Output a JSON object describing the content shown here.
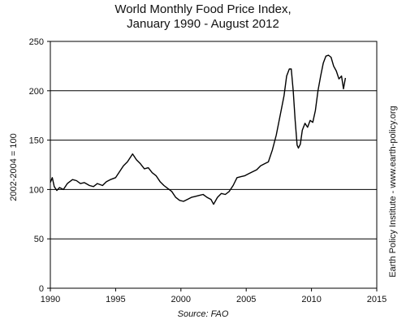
{
  "title_line1": "World Monthly Food Price Index,",
  "title_line2": "January 1990 - August 2012",
  "source": "Source: FAO",
  "side_note": "Earth Policy Institute - www.earth-policy.org",
  "chart_data": {
    "type": "line",
    "title": "World Monthly Food Price Index, January 1990 - August 2012",
    "xlabel": "",
    "ylabel": "2002-2004 = 100",
    "xlim": [
      1990,
      2015
    ],
    "ylim": [
      0,
      250
    ],
    "x_ticks": [
      1990,
      1995,
      2000,
      2005,
      2010,
      2015
    ],
    "y_ticks": [
      0,
      50,
      100,
      150,
      200,
      250
    ],
    "gridlines_y": [
      50,
      100,
      150,
      200
    ],
    "line_color": "#000000",
    "series": [
      {
        "x": [
          1990.0,
          1990.15,
          1990.3,
          1990.5,
          1990.7,
          1991.0,
          1991.3,
          1991.7,
          1992.0,
          1992.3,
          1992.6,
          1993.0,
          1993.3,
          1993.6,
          1994.0,
          1994.3,
          1994.6,
          1995.0,
          1995.3,
          1995.6,
          1995.9,
          1996.1,
          1996.3,
          1996.6,
          1996.9,
          1997.2,
          1997.5,
          1997.8,
          1998.1,
          1998.4,
          1998.7,
          1999.0,
          1999.3,
          1999.6,
          1999.9,
          2000.2,
          2000.5,
          2000.8,
          2001.1,
          2001.4,
          2001.7,
          2002.0,
          2002.3,
          2002.5,
          2002.8,
          2003.1,
          2003.4,
          2003.7,
          2004.0,
          2004.3,
          2004.6,
          2004.9,
          2005.2,
          2005.5,
          2005.8,
          2006.1,
          2006.4,
          2006.7,
          2007.0,
          2007.3,
          2007.6,
          2007.9,
          2008.1,
          2008.3,
          2008.45,
          2008.6,
          2008.75,
          2008.9,
          2009.0,
          2009.15,
          2009.3,
          2009.5,
          2009.7,
          2009.9,
          2010.1,
          2010.3,
          2010.5,
          2010.7,
          2010.9,
          2011.1,
          2011.3,
          2011.5,
          2011.7,
          2011.9,
          2012.1,
          2012.3,
          2012.45,
          2012.6
        ],
        "y": [
          107,
          112,
          103,
          99,
          102,
          100,
          106,
          110,
          109,
          106,
          107,
          104,
          103,
          106,
          104,
          108,
          110,
          112,
          118,
          124,
          128,
          132,
          136,
          130,
          126,
          121,
          122,
          117,
          114,
          108,
          104,
          101,
          98,
          92,
          89,
          88,
          90,
          92,
          93,
          94,
          95,
          92,
          90,
          85,
          92,
          96,
          95,
          98,
          104,
          112,
          113,
          114,
          116,
          118,
          120,
          124,
          126,
          128,
          140,
          155,
          175,
          195,
          215,
          222,
          222,
          200,
          170,
          145,
          142,
          146,
          160,
          167,
          163,
          170,
          168,
          180,
          200,
          215,
          228,
          235,
          236,
          234,
          225,
          220,
          212,
          215,
          202,
          213
        ]
      }
    ]
  }
}
